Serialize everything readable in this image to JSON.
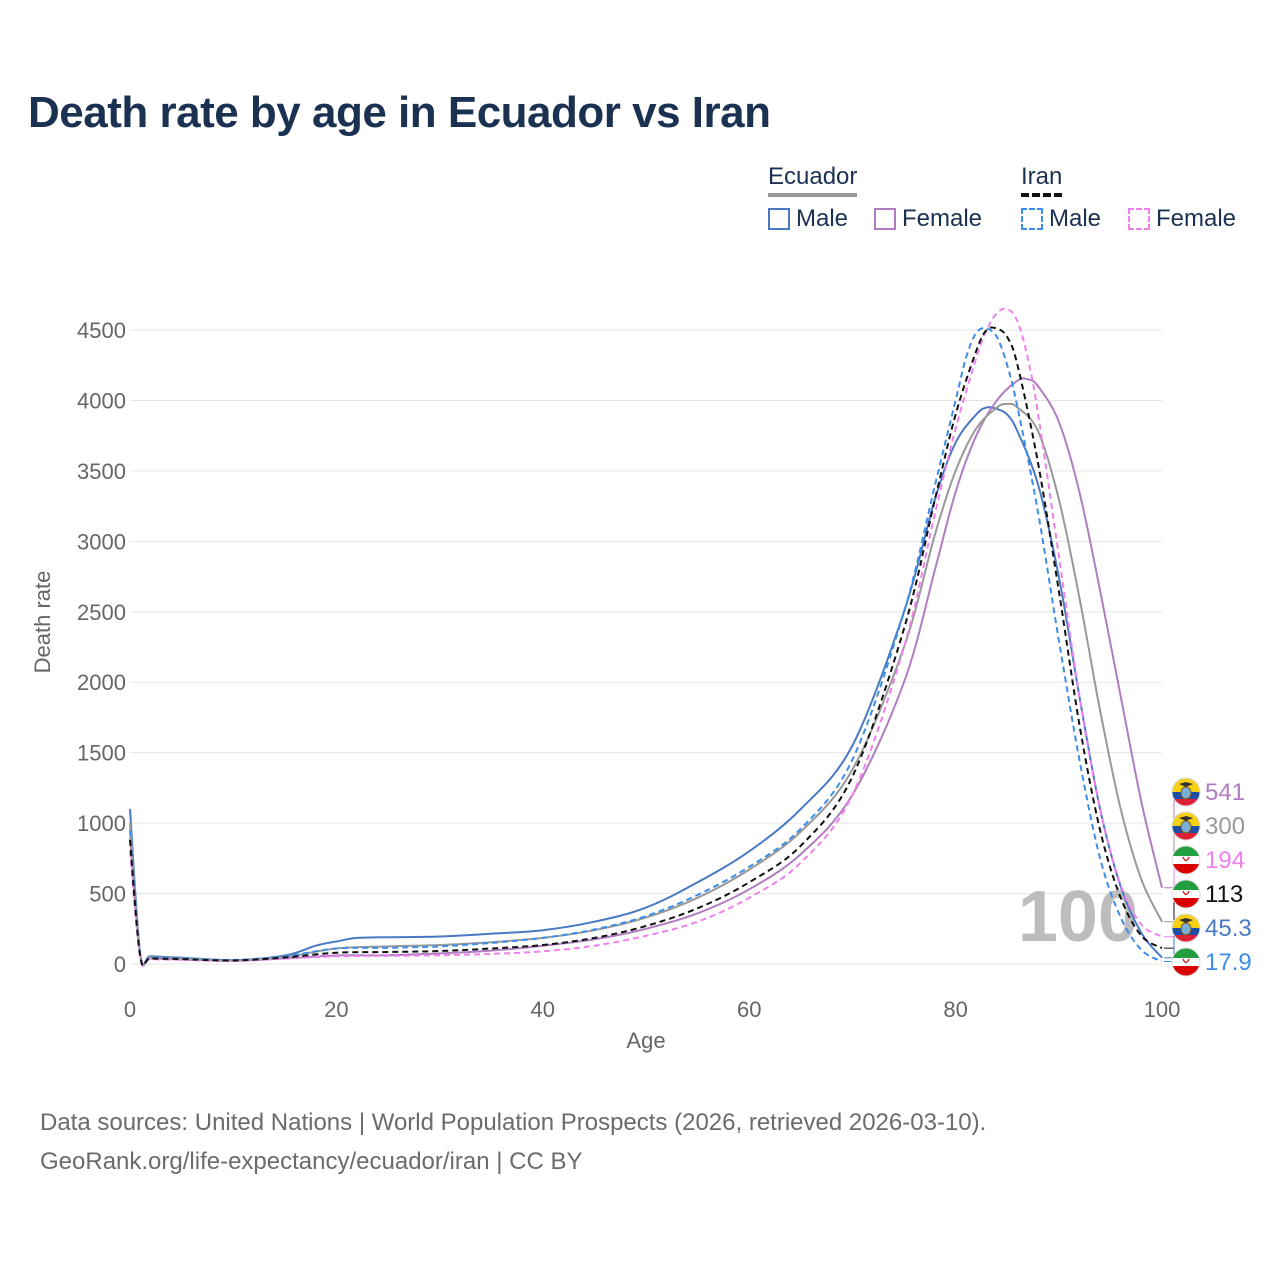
{
  "title": "Death rate by age in Ecuador vs Iran",
  "legend": {
    "ecuador": "Ecuador",
    "iran": "Iran",
    "male": "Male",
    "female": "Female"
  },
  "footer": {
    "line1": "Data sources: United Nations | World Population Prospects (2026, retrieved 2026-03-10).",
    "line2": "GeoRank.org/life-expectancy/ecuador/iran | CC BY"
  },
  "colors": {
    "ecuador_male": "#4a7ac4",
    "ecuador_female": "#b07ec0",
    "ecuador_total": "#999999",
    "iran_male": "#3d8ee8",
    "iran_female": "#f080f0",
    "iran_total": "#111111"
  },
  "chart_data": {
    "type": "line",
    "title": "Death rate by age in Ecuador vs Iran",
    "xlabel": "Age",
    "ylabel": "Death rate",
    "xlim": [
      0,
      100
    ],
    "ylim": [
      0,
      4500
    ],
    "xticks": [
      0,
      20,
      40,
      60,
      80,
      100
    ],
    "yticks": [
      0,
      500,
      1000,
      1500,
      2000,
      2500,
      3000,
      3500,
      4000,
      4500
    ],
    "age_marker": "100",
    "series": [
      {
        "name": "Ecuador Male",
        "key": "ecuador_male",
        "dash": false,
        "end_label": "45.3",
        "points": [
          [
            0,
            1100
          ],
          [
            1,
            70
          ],
          [
            2,
            55
          ],
          [
            5,
            45
          ],
          [
            10,
            28
          ],
          [
            15,
            60
          ],
          [
            18,
            130
          ],
          [
            20,
            160
          ],
          [
            22,
            185
          ],
          [
            25,
            190
          ],
          [
            30,
            195
          ],
          [
            35,
            215
          ],
          [
            40,
            240
          ],
          [
            45,
            300
          ],
          [
            50,
            400
          ],
          [
            55,
            580
          ],
          [
            60,
            800
          ],
          [
            65,
            1100
          ],
          [
            70,
            1550
          ],
          [
            75,
            2500
          ],
          [
            78,
            3300
          ],
          [
            80,
            3700
          ],
          [
            82,
            3900
          ],
          [
            83,
            3950
          ],
          [
            84,
            3940
          ],
          [
            85,
            3900
          ],
          [
            86,
            3780
          ],
          [
            88,
            3400
          ],
          [
            90,
            2750
          ],
          [
            92,
            1900
          ],
          [
            94,
            1100
          ],
          [
            96,
            550
          ],
          [
            98,
            220
          ],
          [
            100,
            45
          ]
        ]
      },
      {
        "name": "Ecuador Female",
        "key": "ecuador_female",
        "dash": false,
        "end_label": "541",
        "points": [
          [
            0,
            900
          ],
          [
            1,
            55
          ],
          [
            2,
            40
          ],
          [
            5,
            32
          ],
          [
            10,
            22
          ],
          [
            15,
            40
          ],
          [
            20,
            60
          ],
          [
            25,
            62
          ],
          [
            30,
            75
          ],
          [
            35,
            95
          ],
          [
            40,
            130
          ],
          [
            45,
            175
          ],
          [
            50,
            250
          ],
          [
            55,
            360
          ],
          [
            60,
            530
          ],
          [
            65,
            780
          ],
          [
            70,
            1200
          ],
          [
            75,
            2000
          ],
          [
            78,
            2800
          ],
          [
            80,
            3350
          ],
          [
            82,
            3750
          ],
          [
            84,
            4000
          ],
          [
            86,
            4140
          ],
          [
            87,
            4150
          ],
          [
            88,
            4100
          ],
          [
            90,
            3850
          ],
          [
            92,
            3350
          ],
          [
            94,
            2650
          ],
          [
            96,
            1900
          ],
          [
            98,
            1150
          ],
          [
            100,
            541
          ]
        ]
      },
      {
        "name": "Ecuador Total",
        "key": "ecuador_total",
        "dash": false,
        "end_label": "300",
        "points": [
          [
            0,
            1000
          ],
          [
            1,
            62
          ],
          [
            2,
            48
          ],
          [
            5,
            38
          ],
          [
            10,
            25
          ],
          [
            15,
            50
          ],
          [
            20,
            110
          ],
          [
            25,
            125
          ],
          [
            30,
            135
          ],
          [
            35,
            155
          ],
          [
            40,
            185
          ],
          [
            45,
            240
          ],
          [
            50,
            330
          ],
          [
            55,
            470
          ],
          [
            60,
            670
          ],
          [
            65,
            940
          ],
          [
            70,
            1380
          ],
          [
            75,
            2250
          ],
          [
            78,
            3050
          ],
          [
            80,
            3500
          ],
          [
            82,
            3800
          ],
          [
            84,
            3950
          ],
          [
            85,
            3975
          ],
          [
            86,
            3950
          ],
          [
            88,
            3780
          ],
          [
            90,
            3300
          ],
          [
            92,
            2600
          ],
          [
            94,
            1800
          ],
          [
            96,
            1100
          ],
          [
            98,
            600
          ],
          [
            100,
            300
          ]
        ]
      },
      {
        "name": "Iran Male",
        "key": "iran_male",
        "dash": true,
        "end_label": "17.9",
        "points": [
          [
            0,
            950
          ],
          [
            1,
            60
          ],
          [
            2,
            45
          ],
          [
            5,
            40
          ],
          [
            10,
            28
          ],
          [
            15,
            55
          ],
          [
            20,
            110
          ],
          [
            25,
            115
          ],
          [
            30,
            125
          ],
          [
            35,
            150
          ],
          [
            40,
            185
          ],
          [
            45,
            245
          ],
          [
            50,
            340
          ],
          [
            55,
            490
          ],
          [
            60,
            690
          ],
          [
            65,
            960
          ],
          [
            70,
            1450
          ],
          [
            75,
            2500
          ],
          [
            78,
            3400
          ],
          [
            80,
            4000
          ],
          [
            81,
            4300
          ],
          [
            82,
            4480
          ],
          [
            83,
            4510
          ],
          [
            84,
            4450
          ],
          [
            85,
            4250
          ],
          [
            86,
            3950
          ],
          [
            88,
            3200
          ],
          [
            90,
            2300
          ],
          [
            92,
            1450
          ],
          [
            94,
            750
          ],
          [
            96,
            330
          ],
          [
            98,
            100
          ],
          [
            100,
            17.9
          ]
        ]
      },
      {
        "name": "Iran Female",
        "key": "iran_female",
        "dash": true,
        "end_label": "194",
        "points": [
          [
            0,
            800
          ],
          [
            1,
            45
          ],
          [
            2,
            35
          ],
          [
            5,
            30
          ],
          [
            10,
            22
          ],
          [
            15,
            38
          ],
          [
            20,
            55
          ],
          [
            25,
            58
          ],
          [
            30,
            62
          ],
          [
            35,
            72
          ],
          [
            40,
            90
          ],
          [
            45,
            130
          ],
          [
            50,
            200
          ],
          [
            55,
            300
          ],
          [
            60,
            470
          ],
          [
            65,
            720
          ],
          [
            70,
            1200
          ],
          [
            75,
            2250
          ],
          [
            78,
            3200
          ],
          [
            80,
            3800
          ],
          [
            82,
            4300
          ],
          [
            83,
            4500
          ],
          [
            84,
            4620
          ],
          [
            85,
            4650
          ],
          [
            86,
            4560
          ],
          [
            87,
            4300
          ],
          [
            88,
            3900
          ],
          [
            90,
            2900
          ],
          [
            92,
            1900
          ],
          [
            94,
            1100
          ],
          [
            96,
            560
          ],
          [
            98,
            280
          ],
          [
            100,
            194
          ]
        ]
      },
      {
        "name": "Iran Total",
        "key": "iran_total",
        "dash": true,
        "end_label": "113",
        "points": [
          [
            0,
            880
          ],
          [
            1,
            52
          ],
          [
            2,
            40
          ],
          [
            5,
            35
          ],
          [
            10,
            25
          ],
          [
            15,
            46
          ],
          [
            20,
            80
          ],
          [
            25,
            85
          ],
          [
            30,
            92
          ],
          [
            35,
            110
          ],
          [
            40,
            135
          ],
          [
            45,
            185
          ],
          [
            50,
            270
          ],
          [
            55,
            395
          ],
          [
            60,
            580
          ],
          [
            65,
            840
          ],
          [
            70,
            1330
          ],
          [
            75,
            2380
          ],
          [
            78,
            3300
          ],
          [
            80,
            3900
          ],
          [
            82,
            4350
          ],
          [
            83,
            4500
          ],
          [
            84,
            4510
          ],
          [
            85,
            4450
          ],
          [
            86,
            4250
          ],
          [
            88,
            3550
          ],
          [
            90,
            2650
          ],
          [
            92,
            1700
          ],
          [
            94,
            950
          ],
          [
            96,
            470
          ],
          [
            98,
            200
          ],
          [
            100,
            113
          ]
        ]
      }
    ]
  }
}
